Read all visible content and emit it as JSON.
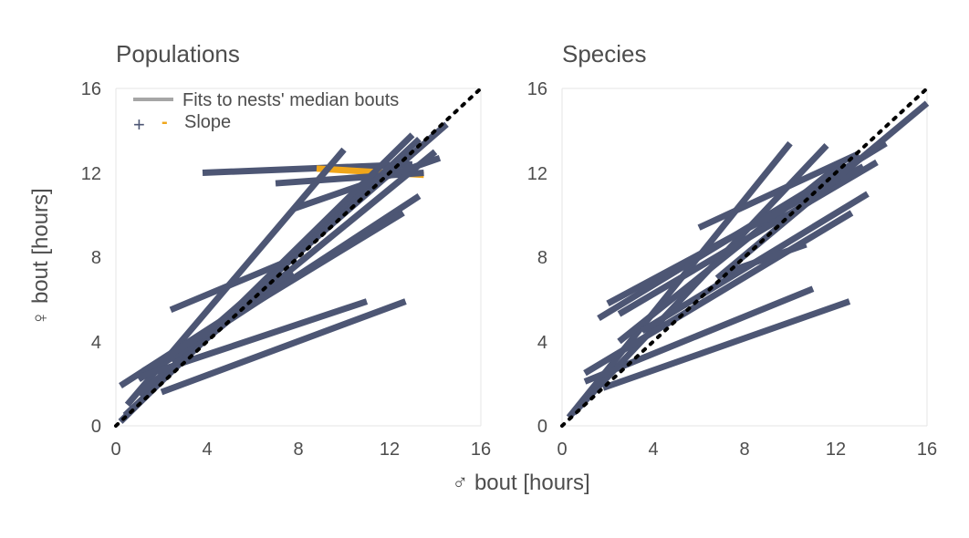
{
  "chart_data": {
    "type": "line",
    "xlabel": "♂ bout [hours]",
    "ylabel": "♀ bout [hours]",
    "xlim": [
      0,
      16
    ],
    "ylim": [
      0,
      16
    ],
    "xticks": [
      0,
      4,
      8,
      12,
      16
    ],
    "yticks": [
      0,
      4,
      8,
      12,
      16
    ],
    "grid": "border only",
    "legend": {
      "position": "top-left",
      "fit_label": "Fits to nests' median bouts",
      "slope_label": "Slope",
      "plus_symbol": "+",
      "minus_symbol": "-"
    },
    "colors": {
      "positive": "#4d5674",
      "negative": "#f0a61a",
      "legend_fit": "#a6a6a6",
      "identity": "#000000"
    },
    "panels": [
      {
        "title": "Populations",
        "lines": [
          {
            "x": [
              3.8,
              13.0
            ],
            "y": [
              12.0,
              12.4
            ],
            "sign": "+"
          },
          {
            "x": [
              8.8,
              13.5
            ],
            "y": [
              12.2,
              11.9
            ],
            "sign": "-"
          },
          {
            "x": [
              7.0,
              13.5
            ],
            "y": [
              11.5,
              12.0
            ],
            "sign": "+"
          },
          {
            "x": [
              0.5,
              10.0
            ],
            "y": [
              1.0,
              13.1
            ],
            "sign": "+"
          },
          {
            "x": [
              0.2,
              13.0
            ],
            "y": [
              0.2,
              13.8
            ],
            "sign": "+"
          },
          {
            "x": [
              0.4,
              13.3
            ],
            "y": [
              0.5,
              13.6
            ],
            "sign": "+"
          },
          {
            "x": [
              1.0,
              14.0
            ],
            "y": [
              1.5,
              13.0
            ],
            "sign": "+"
          },
          {
            "x": [
              2.5,
              14.5
            ],
            "y": [
              3.0,
              14.3
            ],
            "sign": "+"
          },
          {
            "x": [
              7.8,
              14.2
            ],
            "y": [
              10.3,
              12.7
            ],
            "sign": "+"
          },
          {
            "x": [
              2.4,
              7.5
            ],
            "y": [
              5.5,
              7.8
            ],
            "sign": "+"
          },
          {
            "x": [
              0.2,
              7.8
            ],
            "y": [
              1.9,
              7.2
            ],
            "sign": "+"
          },
          {
            "x": [
              1.0,
              13.3
            ],
            "y": [
              2.2,
              10.9
            ],
            "sign": "+"
          },
          {
            "x": [
              1.2,
              12.6
            ],
            "y": [
              2.6,
              10.1
            ],
            "sign": "+"
          },
          {
            "x": [
              1.0,
              11.0
            ],
            "y": [
              2.3,
              5.9
            ],
            "sign": "+"
          },
          {
            "x": [
              2.0,
              12.7
            ],
            "y": [
              1.6,
              5.9
            ],
            "sign": "+"
          }
        ]
      },
      {
        "title": "Species",
        "lines": [
          {
            "x": [
              0.3,
              10.0
            ],
            "y": [
              0.4,
              13.4
            ],
            "sign": "+"
          },
          {
            "x": [
              0.5,
              11.6
            ],
            "y": [
              0.6,
              13.3
            ],
            "sign": "+"
          },
          {
            "x": [
              2.5,
              12.2
            ],
            "y": [
              4.0,
              12.4
            ],
            "sign": "+"
          },
          {
            "x": [
              1.6,
              14.2
            ],
            "y": [
              5.1,
              13.4
            ],
            "sign": "+"
          },
          {
            "x": [
              2.5,
              13.8
            ],
            "y": [
              5.3,
              12.5
            ],
            "sign": "+"
          },
          {
            "x": [
              6.0,
              13.0
            ],
            "y": [
              9.4,
              12.9
            ],
            "sign": "+"
          },
          {
            "x": [
              2.0,
              13.2
            ],
            "y": [
              5.8,
              12.3
            ],
            "sign": "+"
          },
          {
            "x": [
              6.8,
              16.0
            ],
            "y": [
              7.0,
              15.3
            ],
            "sign": "+"
          },
          {
            "x": [
              3.5,
              13.4
            ],
            "y": [
              4.5,
              11.0
            ],
            "sign": "+"
          },
          {
            "x": [
              1.0,
              12.7
            ],
            "y": [
              2.5,
              10.1
            ],
            "sign": "+"
          },
          {
            "x": [
              7.0,
              10.7
            ],
            "y": [
              7.2,
              8.6
            ],
            "sign": "+"
          },
          {
            "x": [
              1.0,
              11.0
            ],
            "y": [
              2.1,
              6.5
            ],
            "sign": "+"
          },
          {
            "x": [
              1.8,
              12.6
            ],
            "y": [
              1.8,
              5.9
            ],
            "sign": "+"
          }
        ]
      }
    ]
  }
}
